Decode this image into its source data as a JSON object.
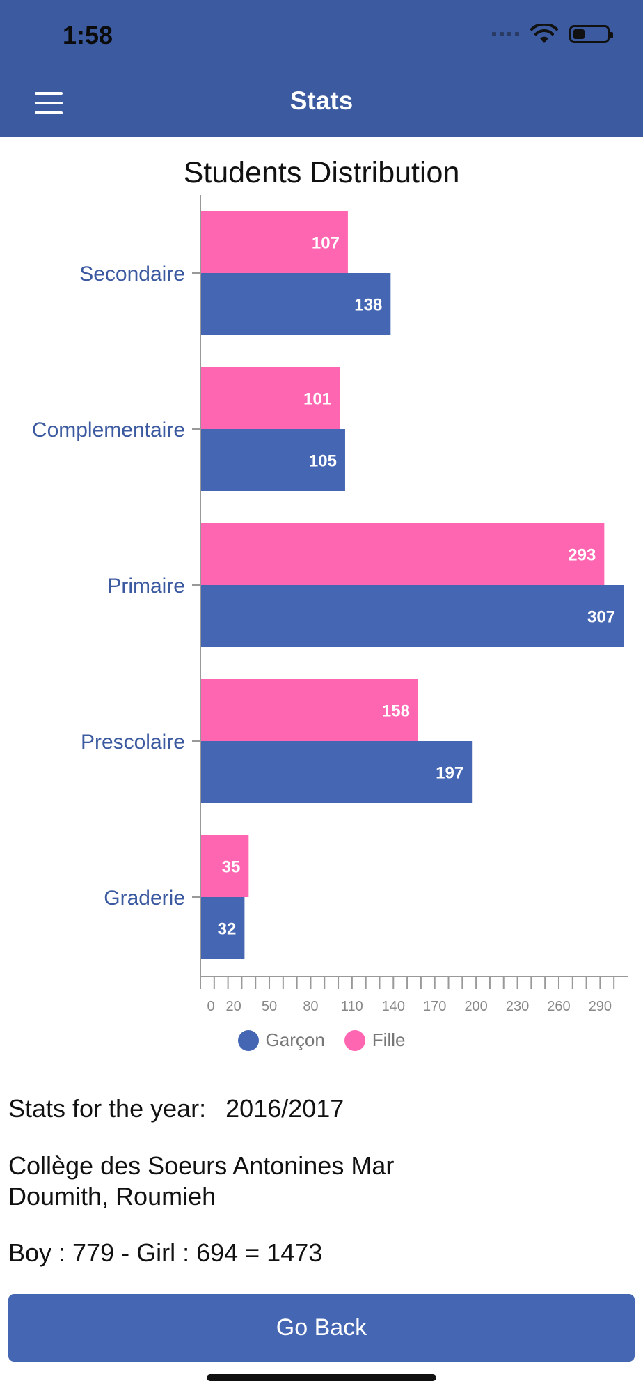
{
  "status_bar": {
    "time": "1:58"
  },
  "nav": {
    "title": "Stats"
  },
  "chart_data": {
    "type": "bar",
    "orientation": "horizontal",
    "title": "Students Distribution",
    "categories": [
      "Secondaire",
      "Complementaire",
      "Primaire",
      "Prescolaire",
      "Graderie"
    ],
    "series": [
      {
        "name": "Fille",
        "color": "#ff66b2",
        "values": [
          107,
          101,
          293,
          158,
          35
        ]
      },
      {
        "name": "Garçon",
        "color": "#4466b3",
        "values": [
          138,
          105,
          307,
          197,
          32
        ]
      }
    ],
    "xlim": [
      0,
      310
    ],
    "x_tick_labels": [
      "0",
      "20",
      "50",
      "80",
      "110",
      "140",
      "170",
      "200",
      "230",
      "260",
      "290"
    ],
    "legend": [
      {
        "name": "Garçon",
        "color": "#4466b3"
      },
      {
        "name": "Fille",
        "color": "#ff66b2"
      }
    ],
    "legend_position": "bottom",
    "grid": false
  },
  "info": {
    "year_label": "Stats for the year:",
    "year_value": "2016/2017",
    "school": "Collège des Soeurs Antonines Mar Doumith, Roumieh",
    "totals": "Boy : 779 - Girl : 694 = 1473"
  },
  "actions": {
    "go_back_label": "Go Back"
  }
}
